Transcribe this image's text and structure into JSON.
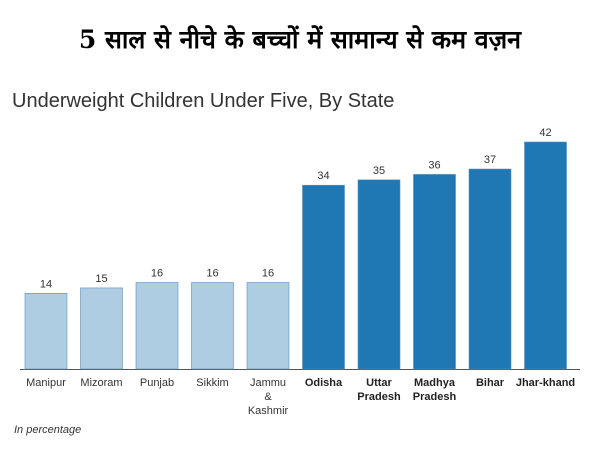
{
  "header": {
    "hindi_title": "5 साल से नीचे के बच्चों में सामान्य से कम वज़न"
  },
  "chart_data": {
    "type": "bar",
    "title": "Underweight Children Under Five, By State",
    "footnote": "In percentage",
    "categories": [
      [
        "Manipur"
      ],
      [
        "Mizoram"
      ],
      [
        "Punjab"
      ],
      [
        "Sikkim"
      ],
      [
        "Jammu",
        "&",
        "Kashmir"
      ],
      [
        "Odisha"
      ],
      [
        "Uttar",
        "Pradesh"
      ],
      [
        "Madhya",
        "Pradesh"
      ],
      [
        "Bihar"
      ],
      [
        "Jhar-khand"
      ]
    ],
    "values": [
      14,
      15,
      16,
      16,
      16,
      34,
      35,
      36,
      37,
      42
    ],
    "groups": [
      "low",
      "low",
      "low",
      "low",
      "low",
      "high",
      "high",
      "high",
      "high",
      "high"
    ],
    "colors": {
      "low": "#aecde3",
      "high": "#1f77b4"
    },
    "ylim": [
      0,
      42
    ],
    "xlabel": "",
    "ylabel": "",
    "grid": false
  }
}
